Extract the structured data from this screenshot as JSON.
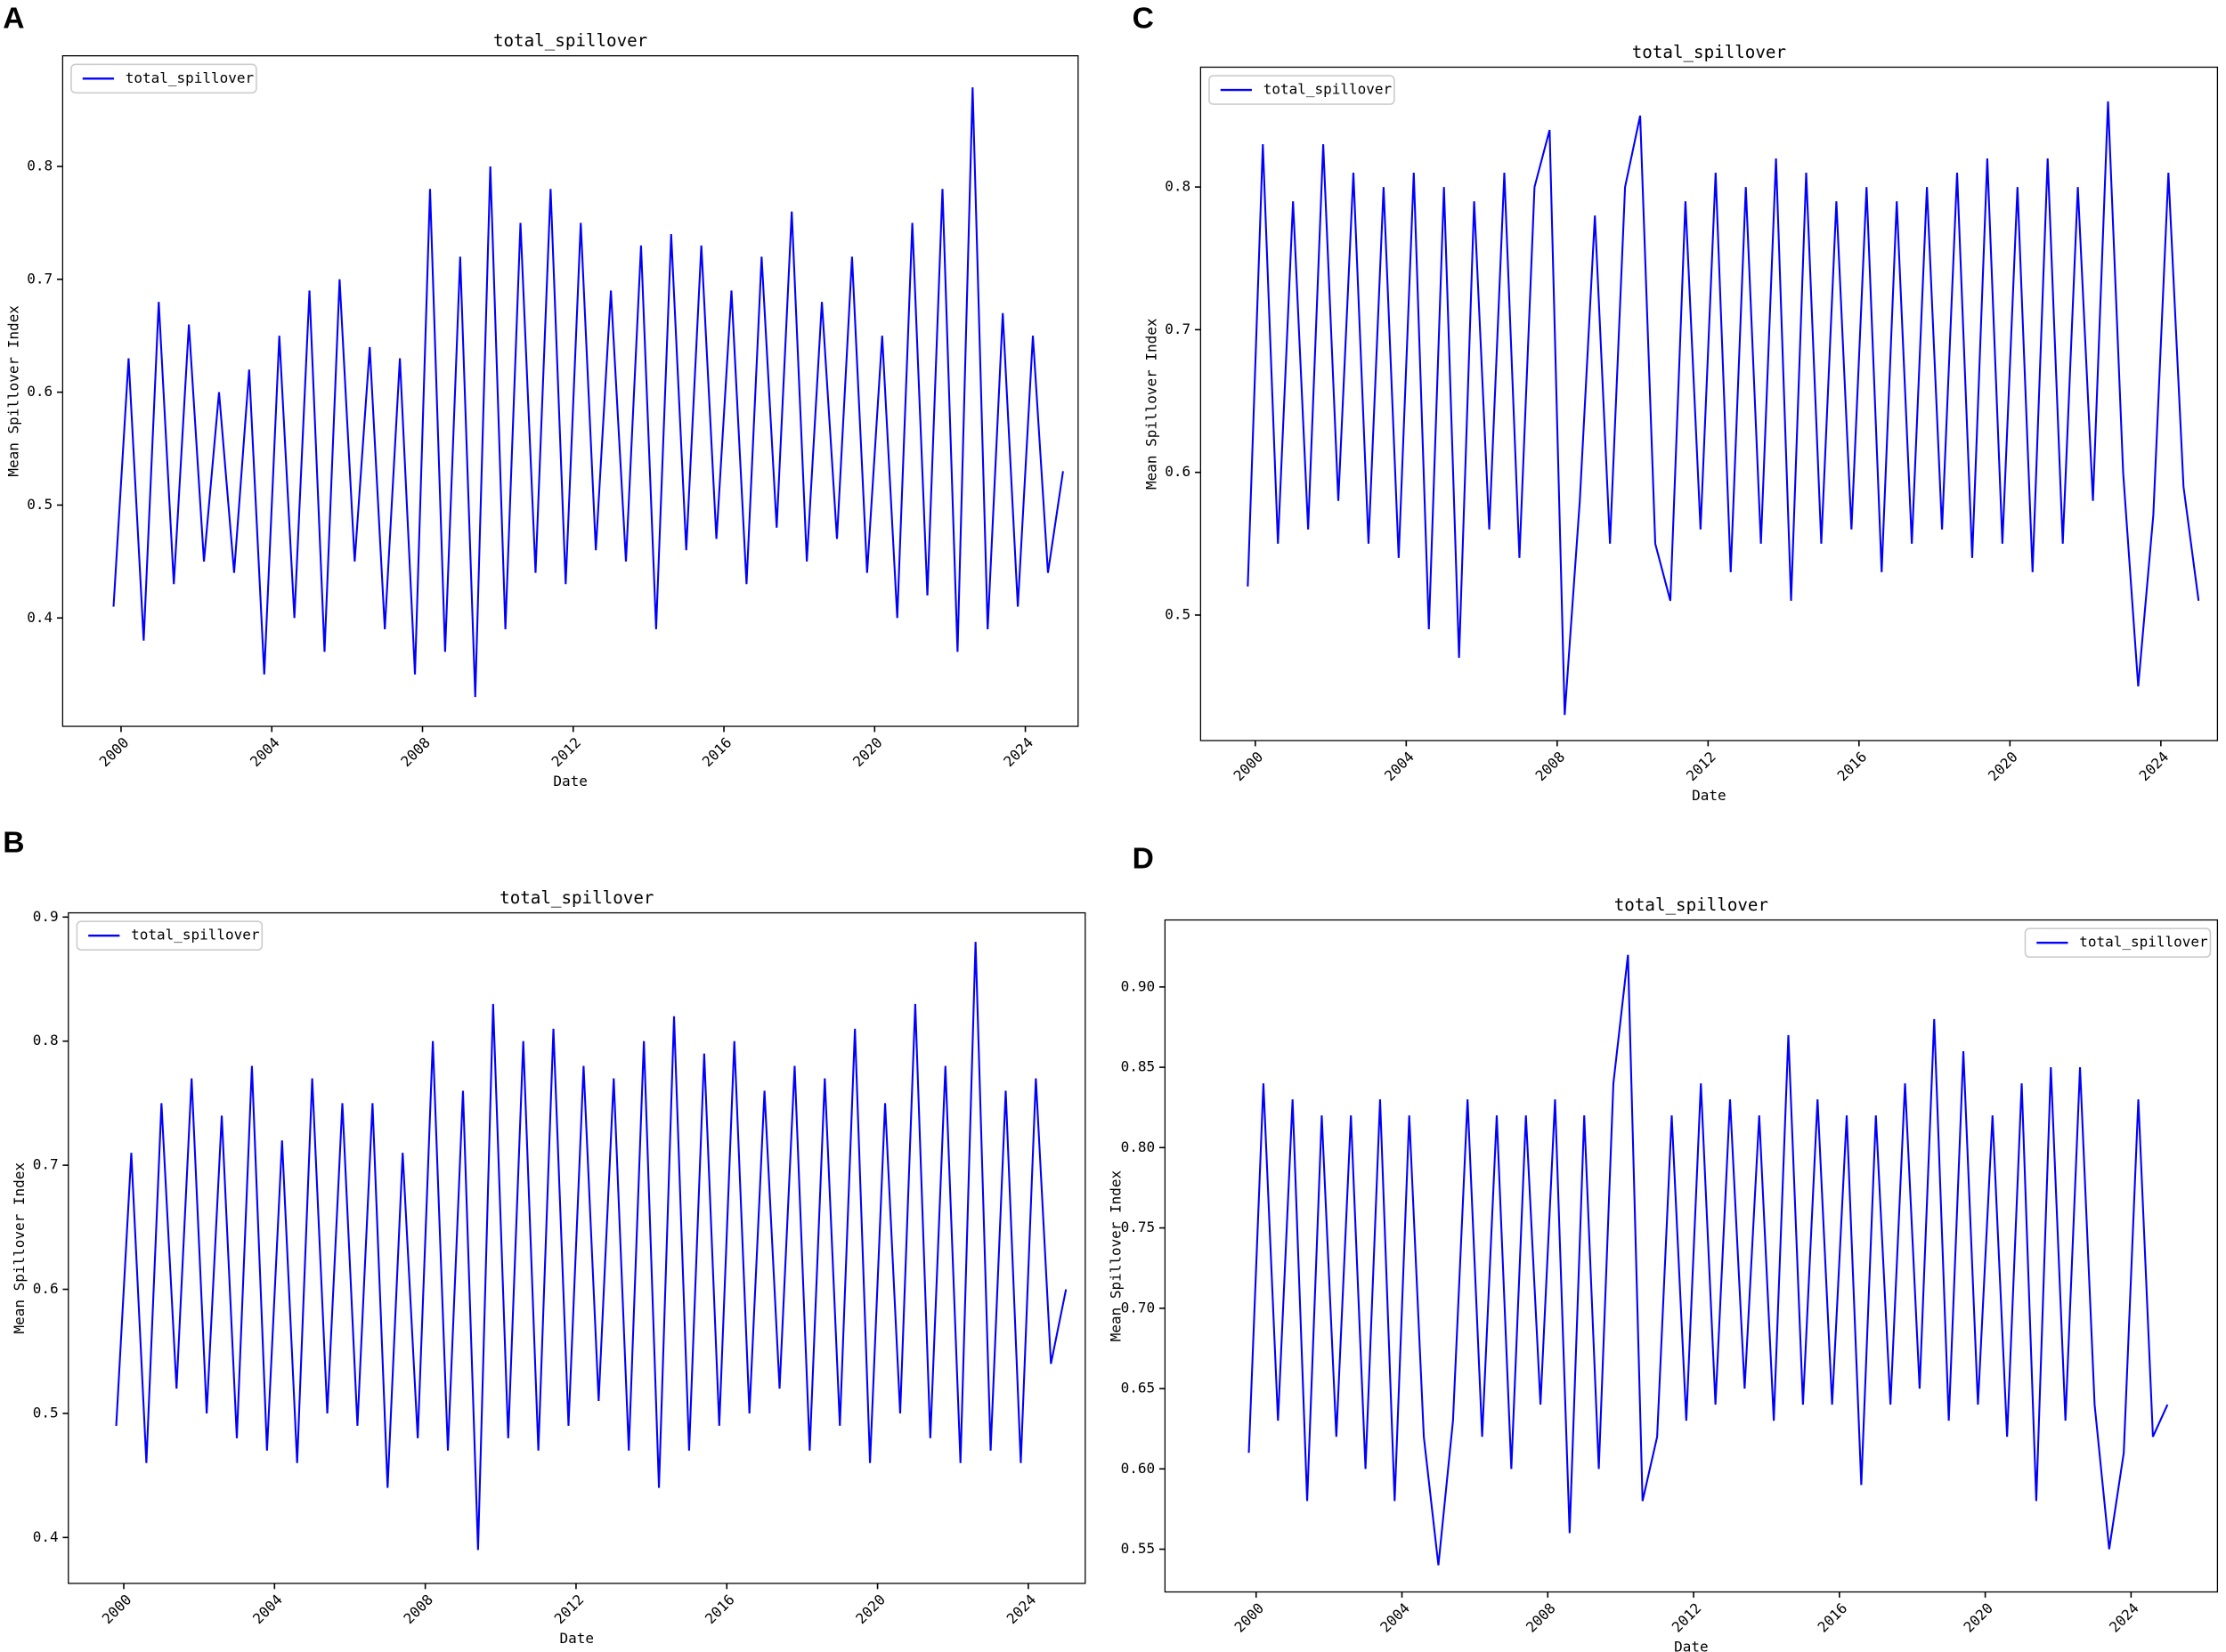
{
  "chart_data": [
    {
      "type": "line",
      "panel": "A",
      "title": "total_spillover",
      "xlabel": "Date",
      "ylabel": "Mean Spillover Index",
      "legend": "upper left",
      "xlim": [
        1998.45,
        2025.4
      ],
      "xticks": [
        2000,
        2004,
        2008,
        2012,
        2016,
        2020,
        2024
      ],
      "ylim": [
        0.304,
        0.898
      ],
      "yticks": [
        0.4,
        0.5,
        0.6,
        0.7,
        0.8
      ],
      "x": [
        1999.8,
        2000.2,
        2000.6,
        2001,
        2001.4,
        2001.8,
        2002.2,
        2002.6,
        2003,
        2003.4,
        2003.8,
        2004.2,
        2004.6,
        2005,
        2005.4,
        2005.8,
        2006.2,
        2006.6,
        2007,
        2007.4,
        2007.8,
        2008.2,
        2008.6,
        2009,
        2009.4,
        2009.8,
        2010.2,
        2010.6,
        2011,
        2011.4,
        2011.8,
        2012.2,
        2012.6,
        2013,
        2013.4,
        2013.8,
        2014.2,
        2014.6,
        2015,
        2015.4,
        2015.8,
        2016.2,
        2016.6,
        2017,
        2017.4,
        2017.8,
        2018.2,
        2018.6,
        2019,
        2019.4,
        2019.8,
        2020.2,
        2020.6,
        2021,
        2021.4,
        2021.8,
        2022.2,
        2022.6,
        2023,
        2023.4,
        2023.8,
        2024.2,
        2024.6,
        2025
      ],
      "series": [
        {
          "name": "total_spillover",
          "color": "#0000ff",
          "values": [
            0.41,
            0.63,
            0.38,
            0.68,
            0.43,
            0.66,
            0.45,
            0.6,
            0.44,
            0.62,
            0.35,
            0.65,
            0.4,
            0.69,
            0.37,
            0.7,
            0.45,
            0.64,
            0.39,
            0.63,
            0.35,
            0.78,
            0.37,
            0.72,
            0.33,
            0.8,
            0.39,
            0.75,
            0.44,
            0.78,
            0.43,
            0.75,
            0.46,
            0.69,
            0.45,
            0.73,
            0.39,
            0.74,
            0.46,
            0.73,
            0.47,
            0.69,
            0.43,
            0.72,
            0.48,
            0.76,
            0.45,
            0.68,
            0.47,
            0.72,
            0.44,
            0.65,
            0.4,
            0.75,
            0.42,
            0.78,
            0.37,
            0.87,
            0.39,
            0.67,
            0.41,
            0.65,
            0.44,
            0.53
          ]
        }
      ]
    },
    {
      "type": "line",
      "panel": "B",
      "title": "total_spillover",
      "xlabel": "Date",
      "ylabel": "Mean Spillover Index",
      "legend": "upper left",
      "xlim": [
        1998.53,
        2025.51
      ],
      "xticks": [
        2000,
        2004,
        2008,
        2012,
        2016,
        2020,
        2024
      ],
      "ylim": [
        0.363,
        0.9034
      ],
      "yticks": [
        0.4,
        0.5,
        0.6,
        0.7,
        0.8,
        0.9
      ],
      "x": [
        1999.8,
        2000.2,
        2000.6,
        2001,
        2001.4,
        2001.8,
        2002.2,
        2002.6,
        2003,
        2003.4,
        2003.8,
        2004.2,
        2004.6,
        2005,
        2005.4,
        2005.8,
        2006.2,
        2006.6,
        2007,
        2007.4,
        2007.8,
        2008.2,
        2008.6,
        2009,
        2009.4,
        2009.8,
        2010.2,
        2010.6,
        2011,
        2011.4,
        2011.8,
        2012.2,
        2012.6,
        2013,
        2013.4,
        2013.8,
        2014.2,
        2014.6,
        2015,
        2015.4,
        2015.8,
        2016.2,
        2016.6,
        2017,
        2017.4,
        2017.8,
        2018.2,
        2018.6,
        2019,
        2019.4,
        2019.8,
        2020.2,
        2020.6,
        2021,
        2021.4,
        2021.8,
        2022.2,
        2022.6,
        2023,
        2023.4,
        2023.8,
        2024.2,
        2024.6,
        2025
      ],
      "series": [
        {
          "name": "total_spillover",
          "color": "#0000ff",
          "values": [
            0.49,
            0.71,
            0.46,
            0.75,
            0.52,
            0.77,
            0.5,
            0.74,
            0.48,
            0.78,
            0.47,
            0.72,
            0.46,
            0.77,
            0.5,
            0.75,
            0.49,
            0.75,
            0.44,
            0.71,
            0.48,
            0.8,
            0.47,
            0.76,
            0.39,
            0.83,
            0.48,
            0.8,
            0.47,
            0.81,
            0.49,
            0.78,
            0.51,
            0.77,
            0.47,
            0.8,
            0.44,
            0.82,
            0.47,
            0.79,
            0.49,
            0.8,
            0.5,
            0.76,
            0.52,
            0.78,
            0.47,
            0.77,
            0.49,
            0.81,
            0.46,
            0.75,
            0.5,
            0.83,
            0.48,
            0.78,
            0.46,
            0.88,
            0.47,
            0.76,
            0.46,
            0.77,
            0.54,
            0.6
          ]
        }
      ]
    },
    {
      "type": "line",
      "panel": "C",
      "title": "total_spillover",
      "xlabel": "Date",
      "ylabel": "Mean Spillover Index",
      "legend": "upper left",
      "xlim": [
        1998.55,
        2025.5
      ],
      "xticks": [
        2000,
        2004,
        2008,
        2012,
        2016,
        2020,
        2024
      ],
      "ylim": [
        0.412,
        0.884
      ],
      "yticks": [
        0.5,
        0.6,
        0.7,
        0.8
      ],
      "x": [
        1999.8,
        2000.2,
        2000.6,
        2001,
        2001.4,
        2001.8,
        2002.2,
        2002.6,
        2003,
        2003.4,
        2003.8,
        2004.2,
        2004.6,
        2005,
        2005.4,
        2005.8,
        2006.2,
        2006.6,
        2007,
        2007.4,
        2007.8,
        2008.2,
        2008.6,
        2009,
        2009.4,
        2009.8,
        2010.2,
        2010.6,
        2011,
        2011.4,
        2011.8,
        2012.2,
        2012.6,
        2013,
        2013.4,
        2013.8,
        2014.2,
        2014.6,
        2015,
        2015.4,
        2015.8,
        2016.2,
        2016.6,
        2017,
        2017.4,
        2017.8,
        2018.2,
        2018.6,
        2019,
        2019.4,
        2019.8,
        2020.2,
        2020.6,
        2021,
        2021.4,
        2021.8,
        2022.2,
        2022.6,
        2023,
        2023.4,
        2023.8,
        2024.2,
        2024.6,
        2025
      ],
      "series": [
        {
          "name": "total_spillover",
          "color": "#0000ff",
          "values": [
            0.52,
            0.83,
            0.55,
            0.79,
            0.56,
            0.83,
            0.58,
            0.81,
            0.55,
            0.8,
            0.54,
            0.81,
            0.49,
            0.8,
            0.47,
            0.79,
            0.56,
            0.81,
            0.54,
            0.8,
            0.84,
            0.43,
            0.58,
            0.78,
            0.55,
            0.8,
            0.85,
            0.55,
            0.51,
            0.79,
            0.56,
            0.81,
            0.53,
            0.8,
            0.55,
            0.82,
            0.51,
            0.81,
            0.55,
            0.79,
            0.56,
            0.8,
            0.53,
            0.79,
            0.55,
            0.8,
            0.56,
            0.81,
            0.54,
            0.82,
            0.55,
            0.8,
            0.53,
            0.82,
            0.55,
            0.8,
            0.58,
            0.86,
            0.6,
            0.45,
            0.57,
            0.81,
            0.59,
            0.51
          ]
        }
      ]
    },
    {
      "type": "line",
      "panel": "D",
      "title": "total_spillover",
      "xlabel": "Date",
      "ylabel": "Mean Spillover Index",
      "legend": "upper right",
      "xlim": [
        1997.5,
        2026.37
      ],
      "xticks": [
        2000,
        2004,
        2008,
        2012,
        2016,
        2020,
        2024
      ],
      "ylim": [
        0.5234,
        0.9417
      ],
      "yticks": [
        {
          "value": 0.55,
          "label": "0.55"
        },
        {
          "value": 0.6,
          "label": "0.60"
        },
        {
          "value": 0.65,
          "label": "0.65"
        },
        {
          "value": 0.7,
          "label": "0.70"
        },
        {
          "value": 0.75,
          "label": "0.75"
        },
        {
          "value": 0.8,
          "label": "0.80"
        },
        {
          "value": 0.85,
          "label": "0.85"
        },
        {
          "value": 0.9,
          "label": "0.90"
        }
      ],
      "x": [
        1999.8,
        2000.2,
        2000.6,
        2001,
        2001.4,
        2001.8,
        2002.2,
        2002.6,
        2003,
        2003.4,
        2003.8,
        2004.2,
        2004.6,
        2005,
        2005.4,
        2005.8,
        2006.2,
        2006.6,
        2007,
        2007.4,
        2007.8,
        2008.2,
        2008.6,
        2009,
        2009.4,
        2009.8,
        2010.2,
        2010.6,
        2011,
        2011.4,
        2011.8,
        2012.2,
        2012.6,
        2013,
        2013.4,
        2013.8,
        2014.2,
        2014.6,
        2015,
        2015.4,
        2015.8,
        2016.2,
        2016.6,
        2017,
        2017.4,
        2017.8,
        2018.2,
        2018.6,
        2019,
        2019.4,
        2019.8,
        2020.2,
        2020.6,
        2021,
        2021.4,
        2021.8,
        2022.2,
        2022.6,
        2023,
        2023.4,
        2023.8,
        2024.2,
        2024.6,
        2025
      ],
      "series": [
        {
          "name": "total_spillover",
          "color": "#0000ff",
          "values": [
            0.61,
            0.84,
            0.63,
            0.83,
            0.58,
            0.82,
            0.62,
            0.82,
            0.6,
            0.83,
            0.58,
            0.82,
            0.62,
            0.54,
            0.63,
            0.83,
            0.62,
            0.82,
            0.6,
            0.82,
            0.64,
            0.83,
            0.56,
            0.82,
            0.6,
            0.84,
            0.92,
            0.58,
            0.62,
            0.82,
            0.63,
            0.84,
            0.64,
            0.83,
            0.65,
            0.82,
            0.63,
            0.87,
            0.64,
            0.83,
            0.64,
            0.82,
            0.59,
            0.82,
            0.64,
            0.84,
            0.65,
            0.88,
            0.63,
            0.86,
            0.64,
            0.82,
            0.62,
            0.84,
            0.58,
            0.85,
            0.63,
            0.85,
            0.64,
            0.55,
            0.61,
            0.83,
            0.62,
            0.64
          ]
        }
      ]
    }
  ]
}
